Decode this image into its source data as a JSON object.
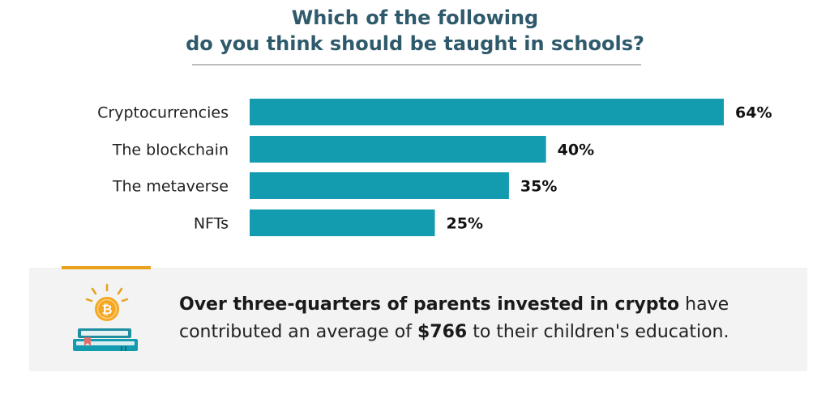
{
  "chart_data": {
    "type": "bar",
    "orientation": "horizontal",
    "title": "Which of the following do you think should be taught in schools?",
    "title_lines": [
      "Which of the following",
      "do you think should be taught in schools?"
    ],
    "categories": [
      "Cryptocurrencies",
      "The blockchain",
      "The metaverse",
      "NFTs"
    ],
    "values": [
      64,
      40,
      35,
      25
    ],
    "value_labels": [
      "64%",
      "40%",
      "35%",
      "25%"
    ],
    "xlim": [
      0,
      64
    ],
    "grid": false,
    "legend": "none",
    "bar_color": "#139bb0"
  },
  "callout": {
    "bold_lead": "Over three-quarters of parents invested in crypto",
    "text_1": " have contributed an average of ",
    "amount": "$766",
    "text_2": " to their children's education.",
    "icon": "coin-on-books-icon",
    "coin_symbol": "₿",
    "accent_color": "#e8a21c"
  }
}
